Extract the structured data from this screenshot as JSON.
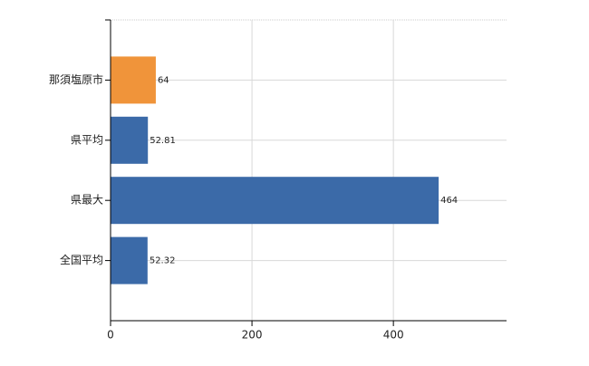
{
  "chart_data": {
    "type": "barh",
    "categories": [
      "那須塩原市",
      "県平均",
      "県最大",
      "全国平均"
    ],
    "values": [
      64,
      52.81,
      464,
      52.32
    ],
    "colors": [
      "#f0943a",
      "#3b6aa8",
      "#3b6aa8",
      "#3b6aa8"
    ],
    "xlim": [
      0,
      560
    ],
    "xticks": [
      0,
      200,
      400
    ],
    "grid": true
  }
}
